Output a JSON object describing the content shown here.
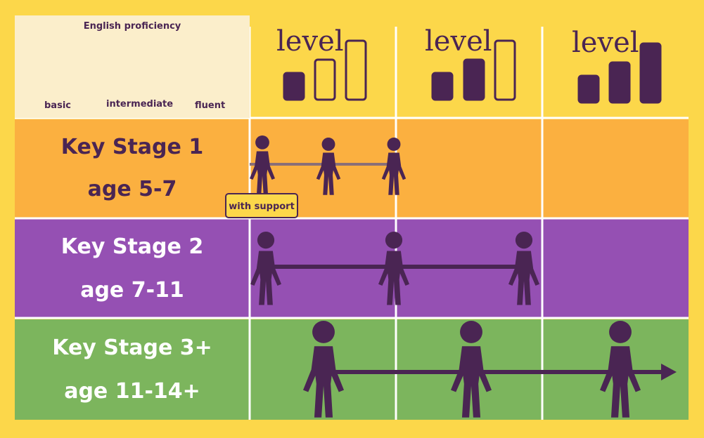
{
  "legend": {
    "title": "English proficiency",
    "basic": "basic",
    "intermediate": "intermediate",
    "fluent": "fluent"
  },
  "columns": [
    {
      "label": "level",
      "filled_bars": 1
    },
    {
      "label": "level",
      "filled_bars": 2
    },
    {
      "label": "level",
      "filled_bars": 3
    }
  ],
  "rows": [
    {
      "stage": "Key Stage 1",
      "age": "age 5-7",
      "color": "#fbb040"
    },
    {
      "stage": "Key Stage 2",
      "age": "age 7-11",
      "color": "#9550b3"
    },
    {
      "stage": "Key Stage 3+",
      "age": "age 11-14+",
      "color": "#7cb55d"
    }
  ],
  "support_note": "with support",
  "colors": {
    "background": "#fcd74a",
    "figure": "#4a2553",
    "legend_bg": "#fbeecb",
    "grid_line": "#ffffff"
  }
}
